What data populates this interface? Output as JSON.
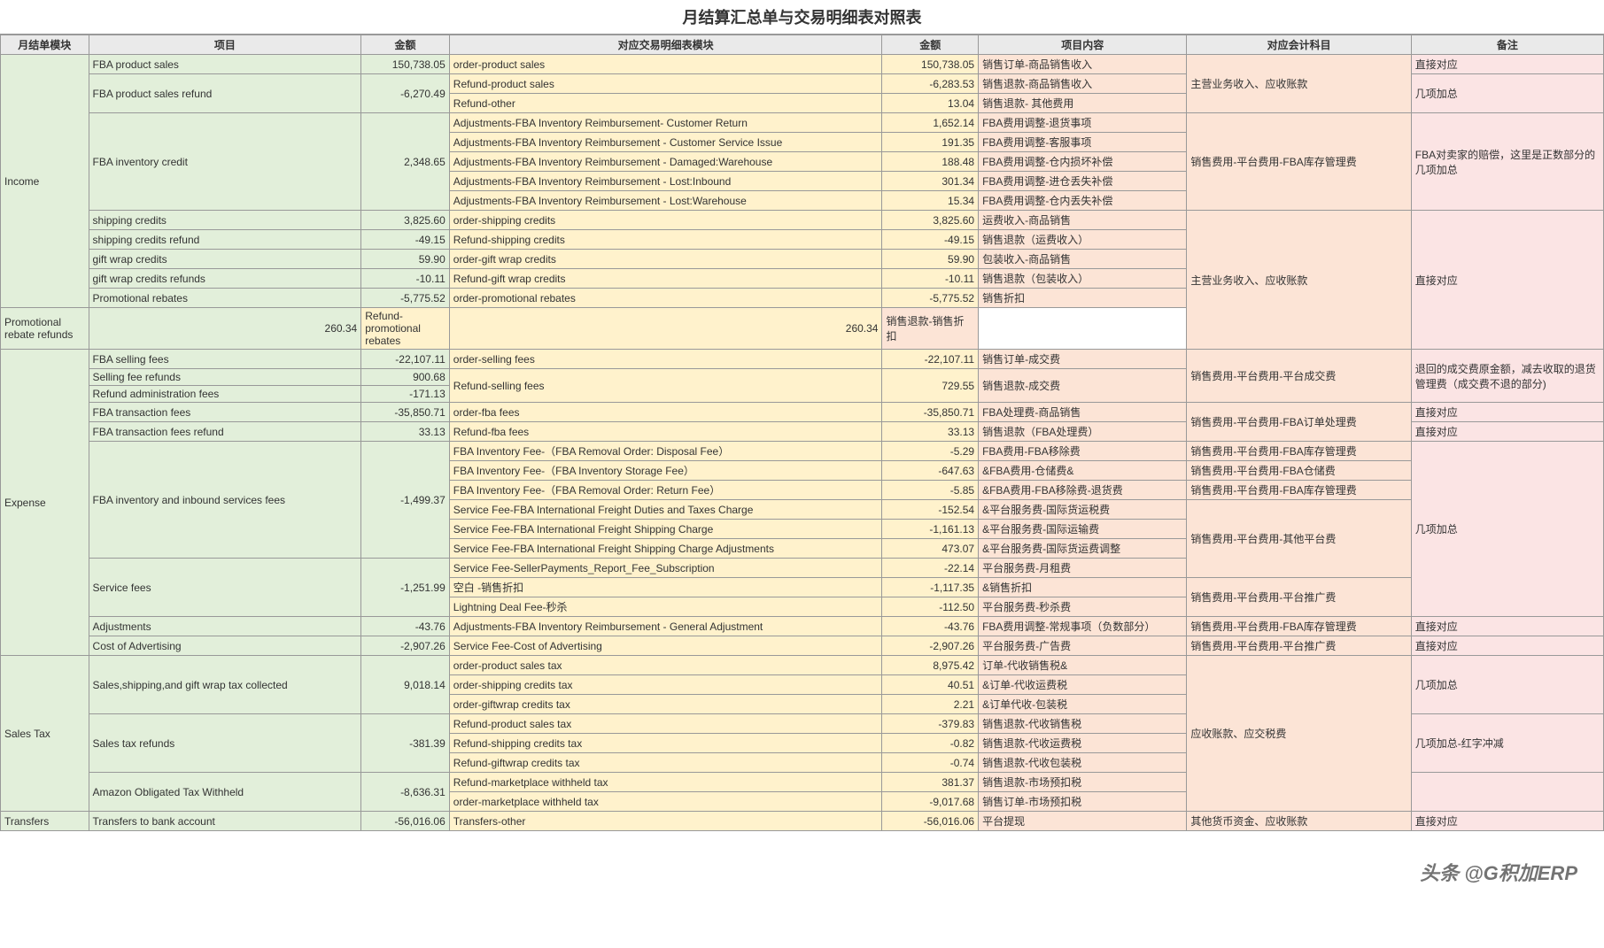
{
  "title": "月结算汇总单与交易明细表对照表",
  "headers": {
    "h1": "月结单模块",
    "h2": "项目",
    "h3": "金额",
    "h4": "对应交易明细表模块",
    "h5": "金额",
    "h6": "项目内容",
    "h7": "对应会计科目",
    "h8": "备注"
  },
  "sections": {
    "income": "Income",
    "expense": "Expense",
    "salestax": "Sales Tax",
    "transfers": "Transfers"
  },
  "rows": {
    "r1": {
      "item": "FBA product sales",
      "amt": "150,738.05",
      "mod": "order-product sales",
      "amt2": "150,738.05",
      "cont": "销售订单-商品销售收入"
    },
    "r2a": {
      "item": "FBA product sales refund",
      "amt": "-6,270.49",
      "mod": "Refund-product sales",
      "amt2": "-6,283.53",
      "cont": "销售退款-商品销售收入"
    },
    "r2b": {
      "mod": "Refund-other",
      "amt2": "13.04",
      "cont": "销售退款- 其他费用"
    },
    "r3a": {
      "item": "FBA inventory credit",
      "amt": "2,348.65",
      "mod": "Adjustments-FBA Inventory Reimbursement- Customer Return",
      "amt2": "1,652.14",
      "cont": "FBA费用调整-退货事项"
    },
    "r3b": {
      "mod": "Adjustments-FBA Inventory Reimbursement - Customer Service Issue",
      "amt2": "191.35",
      "cont": "FBA费用调整-客服事项"
    },
    "r3c": {
      "mod": "Adjustments-FBA Inventory Reimbursement - Damaged:Warehouse",
      "amt2": "188.48",
      "cont": "FBA费用调整-仓内损坏补偿"
    },
    "r3d": {
      "mod": "Adjustments-FBA Inventory Reimbursement - Lost:Inbound",
      "amt2": "301.34",
      "cont": "FBA费用调整-进仓丢失补偿"
    },
    "r3e": {
      "mod": "Adjustments-FBA Inventory Reimbursement - Lost:Warehouse",
      "amt2": "15.34",
      "cont": "FBA费用调整-仓内丢失补偿"
    },
    "r4": {
      "item": "shipping credits",
      "amt": "3,825.60",
      "mod": "order-shipping credits",
      "amt2": "3,825.60",
      "cont": "运费收入-商品销售"
    },
    "r5": {
      "item": "shipping credits refund",
      "amt": "-49.15",
      "mod": "Refund-shipping credits",
      "amt2": "-49.15",
      "cont": "销售退款（运费收入）"
    },
    "r6": {
      "item": "gift wrap credits",
      "amt": "59.90",
      "mod": "order-gift wrap credits",
      "amt2": "59.90",
      "cont": "包装收入-商品销售"
    },
    "r7": {
      "item": "gift wrap credits refunds",
      "amt": "-10.11",
      "mod": "Refund-gift wrap credits",
      "amt2": "-10.11",
      "cont": "销售退款（包装收入）"
    },
    "r8": {
      "item": "Promotional rebates",
      "amt": "-5,775.52",
      "mod": "order-promotional rebates",
      "amt2": "-5,775.52",
      "cont": "销售折扣"
    },
    "r9": {
      "item": "Promotional rebate refunds",
      "amt": "260.34",
      "mod": "Refund-promotional rebates",
      "amt2": "260.34",
      "cont": "销售退款-销售折扣"
    },
    "e1": {
      "item": "FBA selling fees",
      "amt": "-22,107.11",
      "mod": "order-selling fees",
      "amt2": "-22,107.11",
      "cont": "销售订单-成交费"
    },
    "e2": {
      "item": "Selling fee refunds",
      "amt": "900.68",
      "mod": "Refund-selling fees",
      "amt2": "729.55",
      "cont": "销售退款-成交费"
    },
    "e3": {
      "item": "Refund administration fees",
      "amt": "-171.13"
    },
    "e4": {
      "item": "FBA transaction fees",
      "amt": "-35,850.71",
      "mod": "order-fba fees",
      "amt2": "-35,850.71",
      "cont": "FBA处理费-商品销售"
    },
    "e5": {
      "item": "FBA transaction fees refund",
      "amt": "33.13",
      "mod": "Refund-fba fees",
      "amt2": "33.13",
      "cont": "销售退款（FBA处理费）"
    },
    "e6a": {
      "item": "FBA inventory and inbound services fees",
      "amt": "-1,499.37",
      "mod": "FBA Inventory Fee-（FBA Removal Order: Disposal Fee）",
      "amt2": "-5.29",
      "cont": "FBA费用-FBA移除费"
    },
    "e6b": {
      "mod": "FBA Inventory Fee-（FBA Inventory Storage Fee）",
      "amt2": "-647.63",
      "cont": "&FBA费用-仓储费&"
    },
    "e6c": {
      "mod": "FBA Inventory Fee-（FBA Removal Order: Return Fee）",
      "amt2": "-5.85",
      "cont": "&FBA费用-FBA移除费-退货费"
    },
    "e6d": {
      "mod": "Service Fee-FBA International Freight Duties and Taxes Charge",
      "amt2": "-152.54",
      "cont": "&平台服务费-国际货运税费"
    },
    "e6e": {
      "mod": "Service Fee-FBA International Freight Shipping Charge",
      "amt2": "-1,161.13",
      "cont": "&平台服务费-国际运输费"
    },
    "e6f": {
      "mod": "Service Fee-FBA International Freight Shipping Charge Adjustments",
      "amt2": "473.07",
      "cont": "&平台服务费-国际货运费调整"
    },
    "e7a": {
      "item": "Service fees",
      "amt": "-1,251.99",
      "mod": "Service Fee-SellerPayments_Report_Fee_Subscription",
      "amt2": "-22.14",
      "cont": "平台服务费-月租费"
    },
    "e7b": {
      "mod": "空白 -销售折扣",
      "amt2": "-1,117.35",
      "cont": "&销售折扣"
    },
    "e7c": {
      "mod": "Lightning Deal Fee-秒杀",
      "amt2": "-112.50",
      "cont": "平台服务费-秒杀费"
    },
    "e8": {
      "item": "Adjustments",
      "amt": "-43.76",
      "mod": "Adjustments-FBA Inventory Reimbursement - General Adjustment",
      "amt2": "-43.76",
      "cont": "FBA费用调整-常规事项（负数部分）"
    },
    "e9": {
      "item": "Cost of Advertising",
      "amt": "-2,907.26",
      "mod": "Service Fee-Cost of Advertising",
      "amt2": "-2,907.26",
      "cont": "平台服务费-广告费"
    },
    "s1a": {
      "item": "Sales,shipping,and gift wrap tax collected",
      "amt": "9,018.14",
      "mod": "order-product sales tax",
      "amt2": "8,975.42",
      "cont": "订单-代收销售税&"
    },
    "s1b": {
      "mod": "order-shipping credits tax",
      "amt2": "40.51",
      "cont": "&订单-代收运费税"
    },
    "s1c": {
      "mod": "order-giftwrap credits tax",
      "amt2": "2.21",
      "cont": "&订单代收-包装税"
    },
    "s2a": {
      "item": "Sales tax refunds",
      "amt": "-381.39",
      "mod": "Refund-product sales tax",
      "amt2": "-379.83",
      "cont": "销售退款-代收销售税"
    },
    "s2b": {
      "mod": "Refund-shipping credits tax",
      "amt2": "-0.82",
      "cont": "销售退款-代收运费税"
    },
    "s2c": {
      "mod": "Refund-giftwrap credits tax",
      "amt2": "-0.74",
      "cont": "销售退款-代收包装税"
    },
    "s3a": {
      "item": "Amazon Obligated Tax Withheld",
      "amt": "-8,636.31",
      "mod": "Refund-marketplace withheld tax",
      "amt2": "381.37",
      "cont": "销售退款-市场预扣税"
    },
    "s3b": {
      "mod": "order-marketplace withheld tax",
      "amt2": "-9,017.68",
      "cont": "销售订单-市场预扣税"
    },
    "t1": {
      "item": "Transfers to bank account",
      "amt": "-56,016.06",
      "mod": "Transfers-other",
      "amt2": "-56,016.06",
      "cont": "平台提现"
    }
  },
  "accounts": {
    "a1": "主营业务收入、应收账款",
    "a2": "销售费用-平台费用-FBA库存管理费",
    "a3": "主营业务收入、应收账款",
    "a4": "销售费用-平台费用-平台成交费",
    "a5": "销售费用-平台费用-FBA订单处理费",
    "a6": "销售费用-平台费用-FBA库存管理费",
    "a7": "销售费用-平台费用-FBA仓储费",
    "a8": "销售费用-平台费用-FBA库存管理费",
    "a9": "销售费用-平台费用-其他平台费",
    "a10": "销售费用-平台费用-平台推广费",
    "a11": "销售费用-平台费用-FBA库存管理费",
    "a12": "销售费用-平台费用-平台推广费",
    "a13": "应收账款、应交税费",
    "a14": "其他货币资金、应收账款"
  },
  "remarks": {
    "m1": "直接对应",
    "m2": "几项加总",
    "m3": "FBA对卖家的赔偿，这里是正数部分的几项加总",
    "m4": "直接对应",
    "m5": "退回的成交费原金额，减去收取的退货管理费（成交费不退的部分)",
    "m6": "直接对应",
    "m7": "直接对应",
    "m8": "几项加总",
    "m9": "直接对应",
    "m10": "直接对应",
    "m11": "几项加总",
    "m12": "几项加总-红字冲减",
    "m13": "直接对应"
  },
  "watermark": "头条 @G积加ERP"
}
